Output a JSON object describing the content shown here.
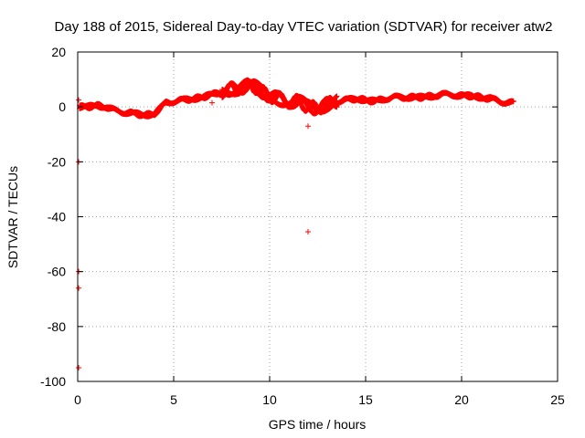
{
  "chart_data": {
    "type": "scatter",
    "title": "Day 188 of 2015, Sidereal Day-to-day VTEC variation (SDTVAR) for receiver atw2",
    "xlabel": "GPS time / hours",
    "ylabel": "SDTVAR / TECUs",
    "xlim": [
      0,
      25
    ],
    "ylim": [
      -100,
      20
    ],
    "xticks": [
      0,
      5,
      10,
      15,
      20,
      25
    ],
    "yticks": [
      20,
      0,
      -20,
      -40,
      -60,
      -80,
      -100
    ],
    "grid": true,
    "marker": "+",
    "color": "#ff0000",
    "series": [
      {
        "name": "SDTVAR",
        "trace_x": [
          0.1,
          0.5,
          1.0,
          1.5,
          2.0,
          2.5,
          3.0,
          3.5,
          4.0,
          4.3,
          4.6,
          5.0,
          5.5,
          6.0,
          6.5,
          7.0,
          7.5,
          8.0,
          8.5,
          9.0,
          9.3,
          9.6,
          10.0,
          10.5,
          11.0,
          11.5,
          12.0,
          12.5,
          13.0,
          13.5,
          14.0,
          14.5,
          15.0,
          15.5,
          16.0,
          16.5,
          17.0,
          17.5,
          18.0,
          18.5,
          19.0,
          19.5,
          20.0,
          20.5,
          21.0,
          21.5,
          22.0,
          22.5,
          22.7
        ],
        "trace_y": [
          0,
          0,
          0.5,
          0,
          -1.5,
          -2,
          -2.5,
          -3,
          -2.5,
          -0.5,
          1.5,
          2,
          2.5,
          3,
          3.5,
          4.5,
          5.5,
          6.5,
          7,
          8,
          7,
          5.5,
          4,
          3,
          2,
          2,
          0,
          -0.5,
          1,
          2,
          2.5,
          3,
          2.5,
          2,
          3,
          3.5,
          3.5,
          3.5,
          3.5,
          4,
          4.5,
          4.5,
          4,
          4,
          3.5,
          3,
          2,
          1.5,
          1.5
        ],
        "outliers": [
          {
            "x": 0.05,
            "y": 2.5
          },
          {
            "x": 0.05,
            "y": -20
          },
          {
            "x": 0.05,
            "y": -60
          },
          {
            "x": 0.05,
            "y": -66
          },
          {
            "x": 0.05,
            "y": -95
          },
          {
            "x": 7.0,
            "y": 1.5
          },
          {
            "x": 12.0,
            "y": -7
          },
          {
            "x": 12.0,
            "y": -45.5
          }
        ]
      }
    ]
  }
}
